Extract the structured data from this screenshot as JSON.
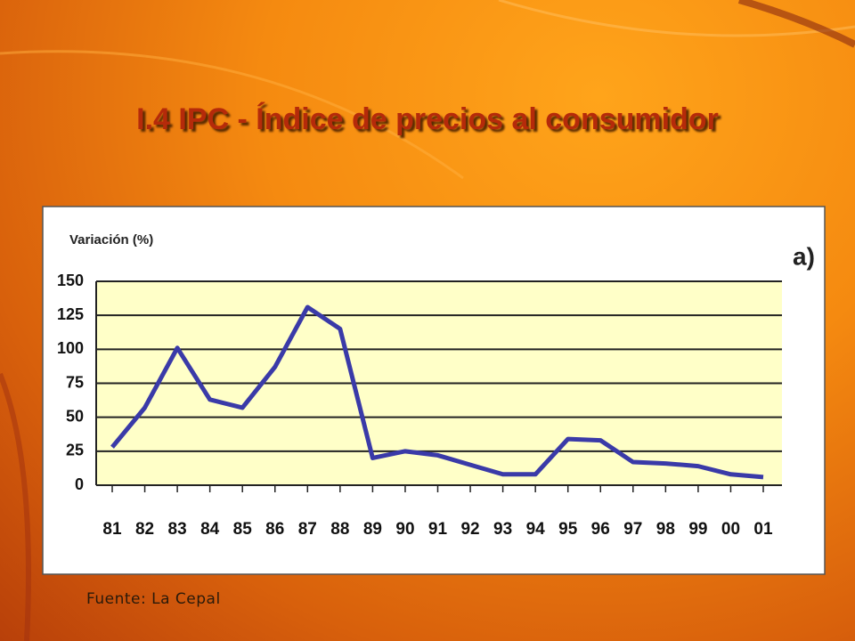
{
  "title": "I.4 IPC - Índice de precios al consumidor",
  "source": "Fuente: La Cepal",
  "chart_data": {
    "type": "line",
    "y_label": "Variación (%)",
    "annotation": "a)",
    "categories": [
      "81",
      "82",
      "83",
      "84",
      "85",
      "86",
      "87",
      "88",
      "89",
      "90",
      "91",
      "92",
      "93",
      "94",
      "95",
      "96",
      "97",
      "98",
      "99",
      "00",
      "01"
    ],
    "values": [
      28,
      57,
      101,
      63,
      57,
      87,
      131,
      115,
      20,
      25,
      22,
      15,
      8,
      8,
      34,
      33,
      17,
      16,
      14,
      8,
      6
    ],
    "color": "#3a3aa8",
    "ylim": [
      0,
      150
    ],
    "yticks": [
      0,
      25,
      50,
      75,
      100,
      125,
      150
    ],
    "grid": true
  }
}
